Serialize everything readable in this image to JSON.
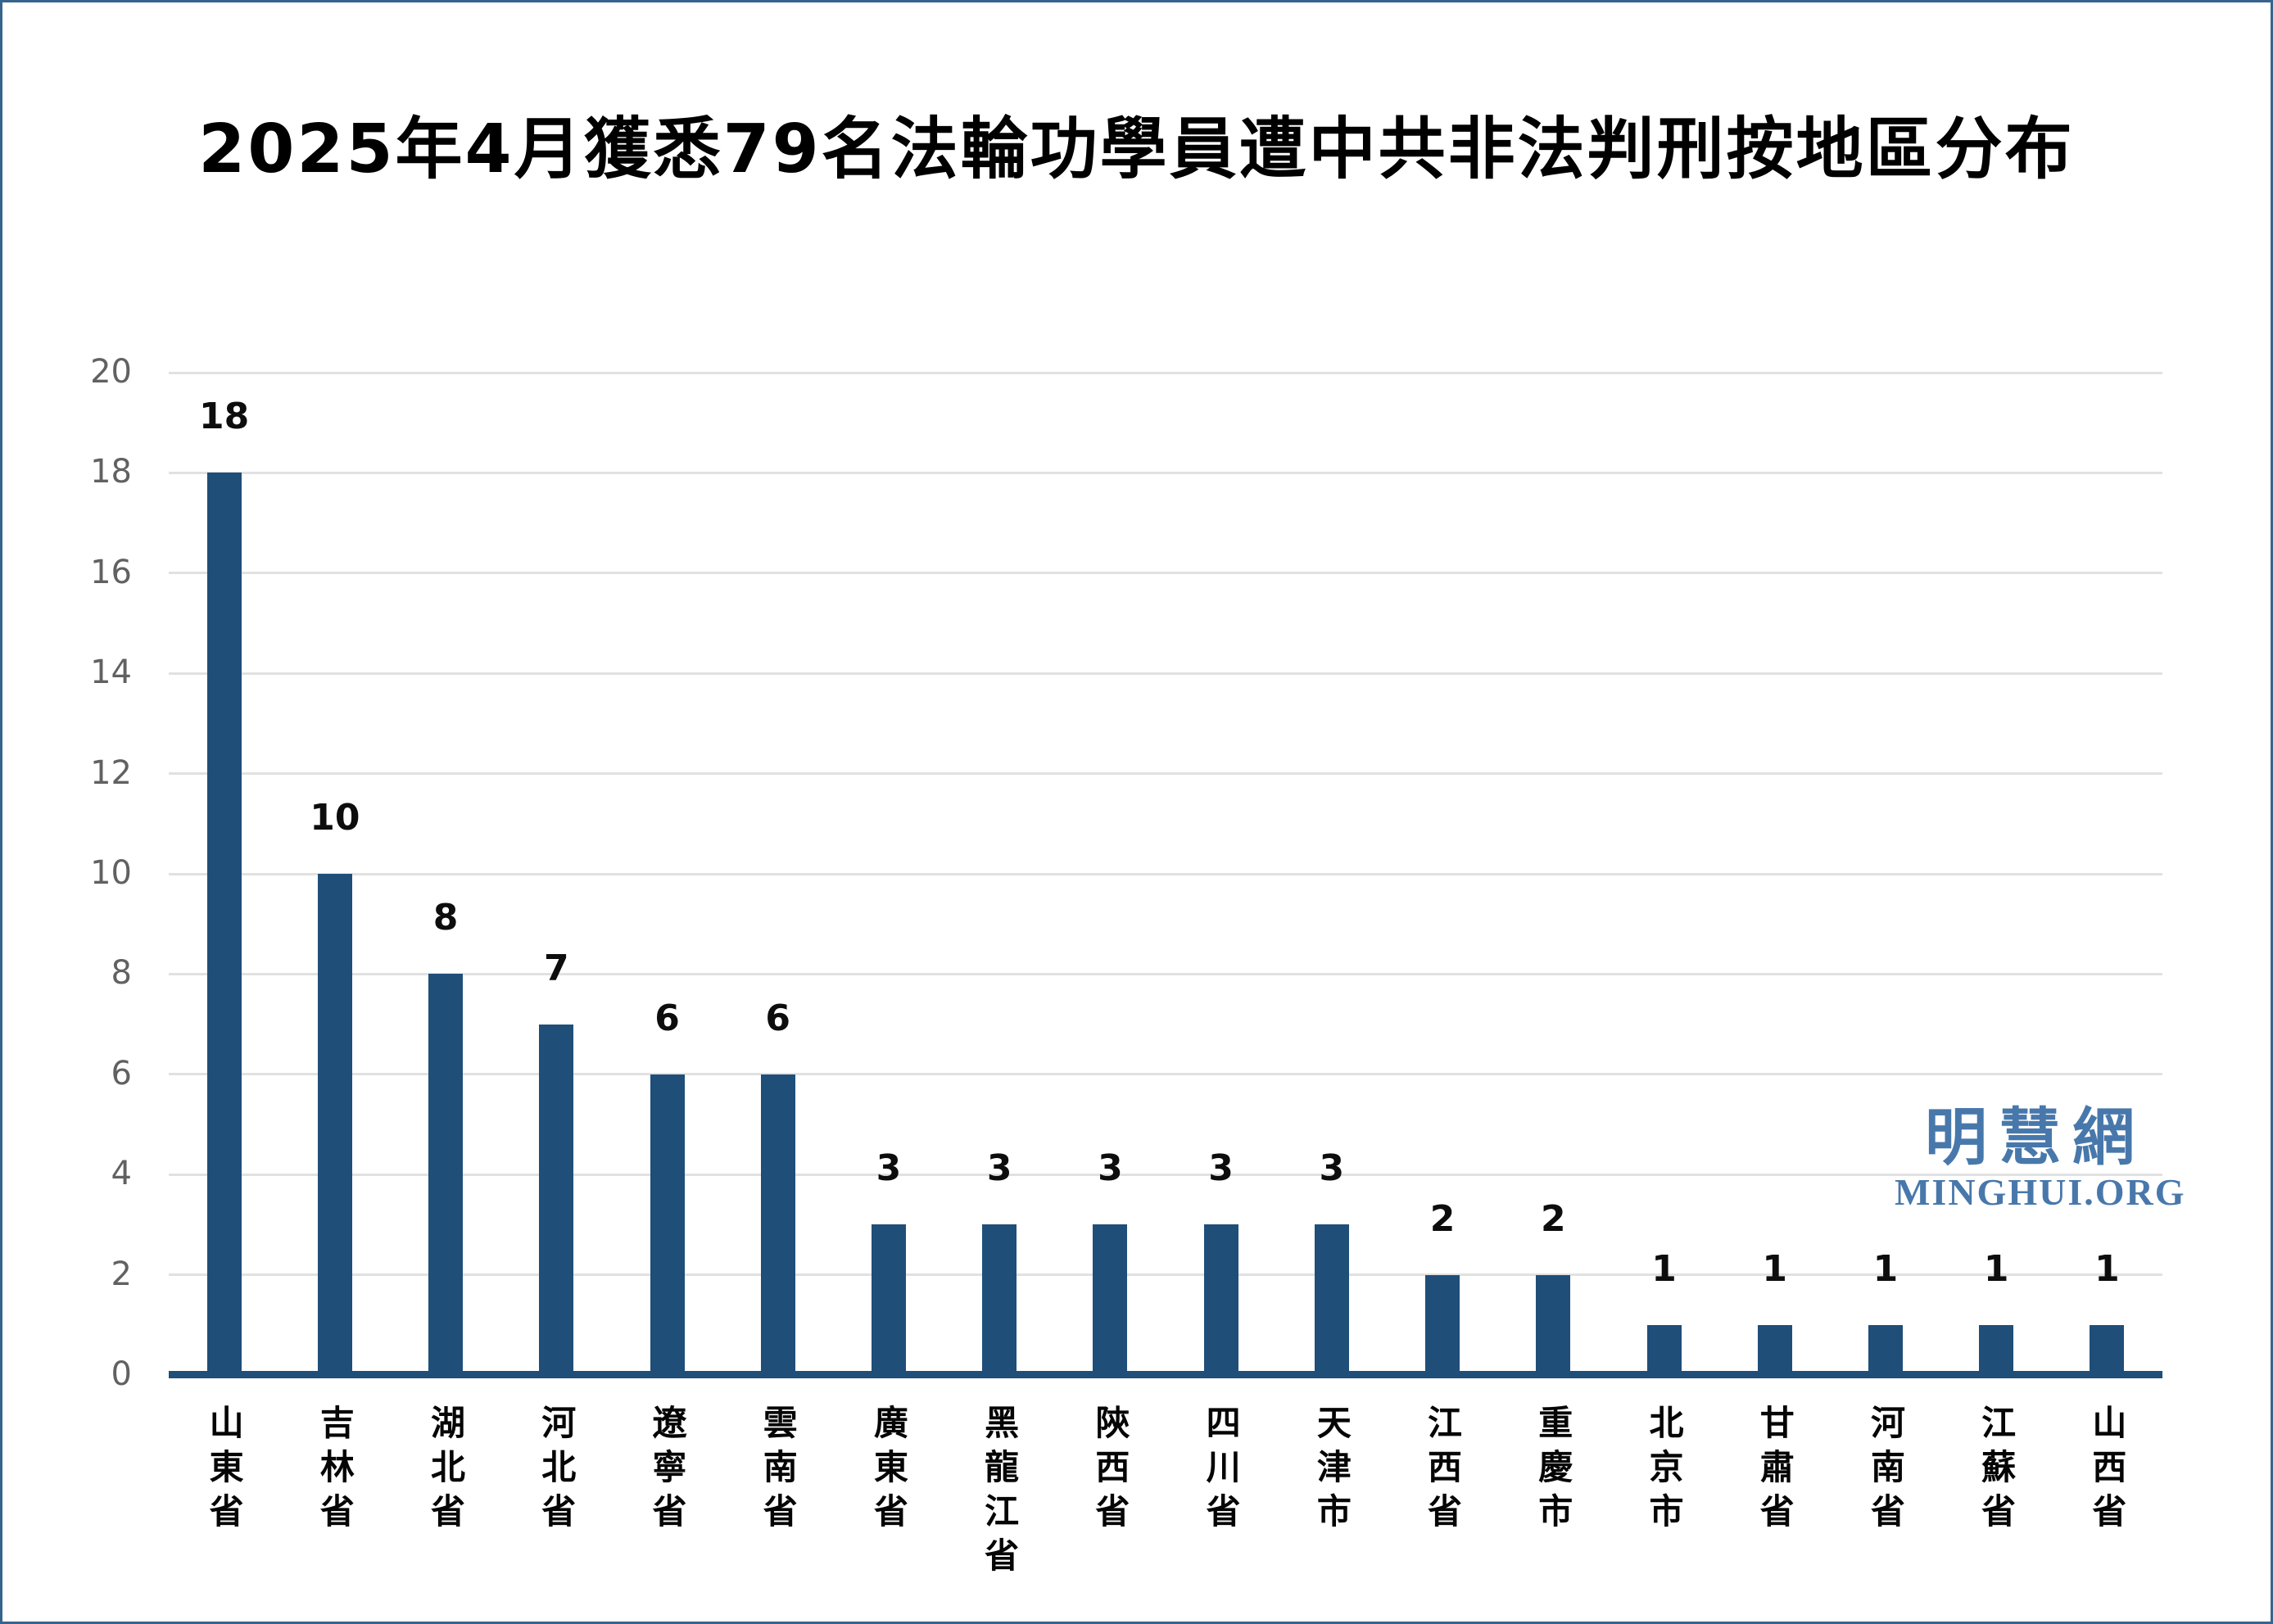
{
  "title": "2025年4月獲悉79名法輪功學員遭中共非法判刑按地區分布",
  "watermark": {
    "cjk": "明慧網",
    "latin": "MINGHUI.ORG"
  },
  "colors": {
    "bar": "#1f4e79",
    "axis_line": "#1f4e79",
    "gridline": "#e1e1e1",
    "ytick_text": "#616161",
    "value_label_text": "#0d0d0d",
    "title_text": "#000000",
    "watermark_blue": "#4878ab",
    "frame_border": "#36648f",
    "background": "#ffffff"
  },
  "chart_data": {
    "type": "bar",
    "title": "2025年4月獲悉79名法輪功學員遭中共非法判刑按地區分布",
    "categories": [
      "山東省",
      "吉林省",
      "湖北省",
      "河北省",
      "遼寧省",
      "雲南省",
      "廣東省",
      "黑龍江省",
      "陝西省",
      "四川省",
      "天津市",
      "江西省",
      "重慶市",
      "北京市",
      "甘肅省",
      "河南省",
      "江蘇省",
      "山西省"
    ],
    "values": [
      18,
      10,
      8,
      7,
      6,
      6,
      3,
      3,
      3,
      3,
      3,
      2,
      2,
      1,
      1,
      1,
      1,
      1
    ],
    "total": 79,
    "xlabel": "",
    "ylabel": "",
    "ylim": [
      0,
      20
    ],
    "yticks": [
      0,
      2,
      4,
      6,
      8,
      10,
      12,
      14,
      16,
      18,
      20
    ],
    "grid": true,
    "legend": "none",
    "data_labels": true,
    "x_label_orientation": "vertical-upright"
  }
}
